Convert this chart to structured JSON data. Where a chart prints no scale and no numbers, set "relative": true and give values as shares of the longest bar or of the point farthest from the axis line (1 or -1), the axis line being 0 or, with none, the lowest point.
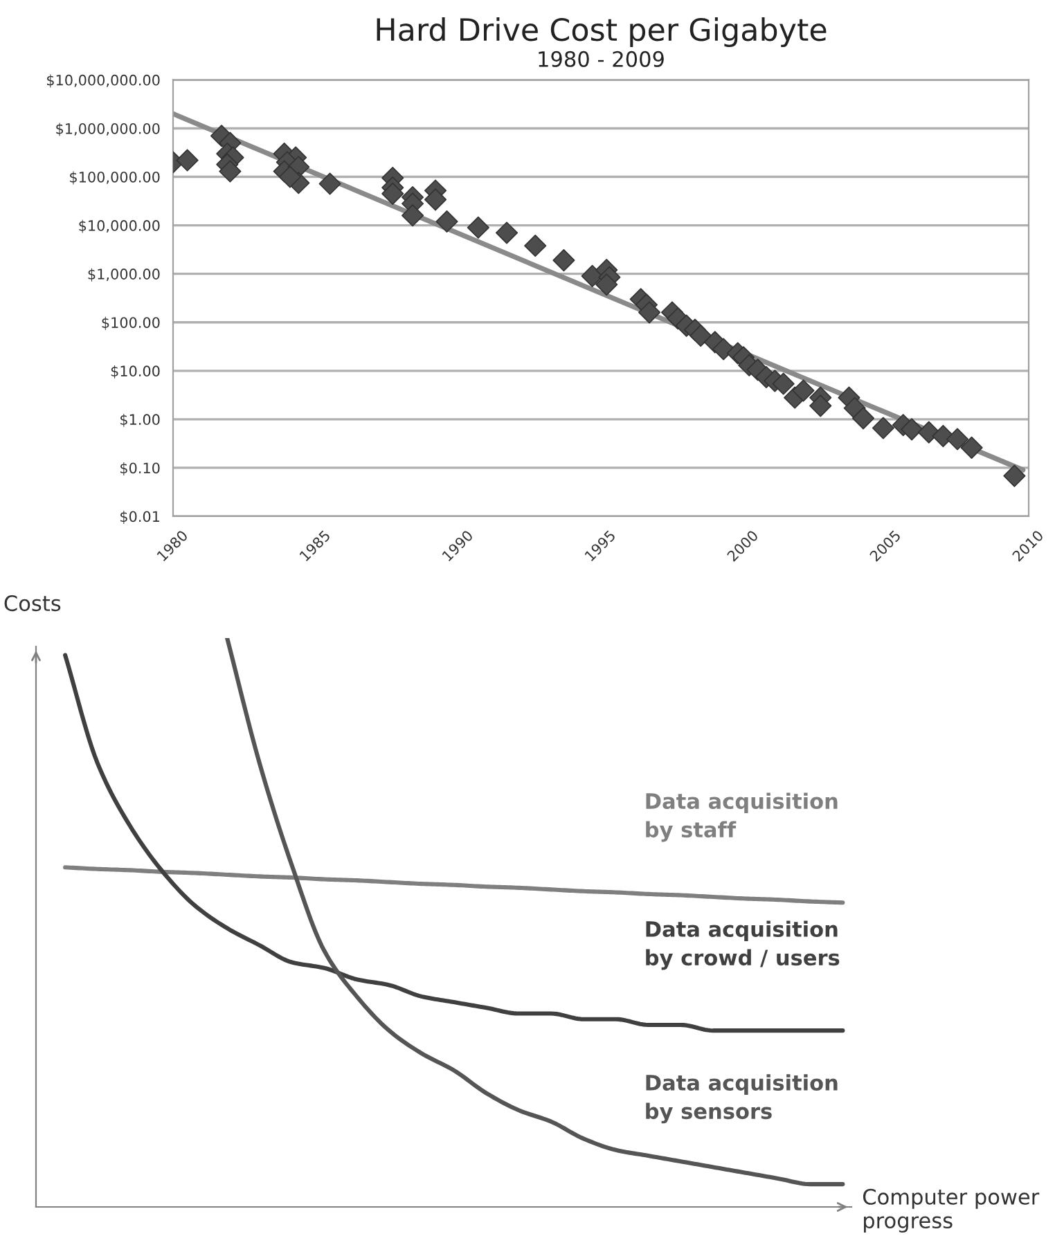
{
  "chart_data": [
    {
      "type": "scatter",
      "title": "Hard Drive Cost per Gigabyte",
      "subtitle": "1980 - 2009",
      "log": "y",
      "grid": "y",
      "marker": "diamond",
      "xlim": [
        1980,
        2010
      ],
      "xticks": [
        1980,
        1985,
        1990,
        1995,
        2000,
        2005,
        2010
      ],
      "ylim": [
        0.01,
        10000000
      ],
      "yticks": [
        {
          "value": 0.01,
          "label": "$0.01"
        },
        {
          "value": 0.1,
          "label": "$0.10"
        },
        {
          "value": 1,
          "label": "$1.00"
        },
        {
          "value": 10,
          "label": "$10.00"
        },
        {
          "value": 100,
          "label": "$100.00"
        },
        {
          "value": 1000,
          "label": "$1,000.00"
        },
        {
          "value": 10000,
          "label": "$10,000.00"
        },
        {
          "value": 100000,
          "label": "$100,000.00"
        },
        {
          "value": 1000000,
          "label": "$1,000,000.00"
        },
        {
          "value": 10000000,
          "label": "$10,000,000.00"
        }
      ],
      "series": [
        {
          "type": "line",
          "marker": "none",
          "color": "#8a8a8a",
          "x": [
            1980,
            2009.8
          ],
          "values": [
            2000000,
            0.09
          ]
        },
        {
          "type": "scatter",
          "color": "#4d4d4d",
          "x": [
            1980.0,
            1980.5,
            1981.7,
            1982.0,
            1981.9,
            1982.1,
            1981.9,
            1982.0,
            1983.9,
            1984.3,
            1984.0,
            1983.9,
            1984.4,
            1984.4,
            1984.1,
            1985.5,
            1987.7,
            1987.7,
            1987.7,
            1988.4,
            1988.4,
            1988.4,
            1989.2,
            1989.2,
            1989.6,
            1990.7,
            1991.7,
            1992.7,
            1993.7,
            1994.7,
            1995.2,
            1995.3,
            1995.2,
            1996.4,
            1996.6,
            1996.7,
            1997.5,
            1997.7,
            1998.0,
            1998.3,
            1998.5,
            1999.0,
            1999.3,
            1999.8,
            2000.0,
            2000.2,
            2000.5,
            2000.8,
            2001.1,
            2001.4,
            2001.8,
            2002.1,
            2002.7,
            2002.7,
            2003.7,
            2003.9,
            2004.2,
            2004.9,
            2005.6,
            2005.9,
            2006.5,
            2007.0,
            2007.5,
            2008.0,
            2009.5
          ],
          "values": [
            200000,
            220000,
            700000,
            500000,
            300000,
            250000,
            180000,
            130000,
            300000,
            250000,
            200000,
            130000,
            160000,
            75000,
            100000,
            72000,
            95000,
            60000,
            45000,
            38000,
            28000,
            16000,
            52000,
            34000,
            12000,
            9000,
            7000,
            3800,
            1900,
            900,
            1200,
            850,
            600,
            300,
            230,
            160,
            160,
            120,
            85,
            70,
            53,
            39,
            28,
            23,
            19,
            13,
            10.5,
            7.4,
            6.2,
            5.4,
            2.8,
            3.9,
            2.8,
            1.9,
            2.8,
            1.7,
            1.05,
            0.66,
            0.76,
            0.62,
            0.54,
            0.45,
            0.39,
            0.26,
            0.068
          ]
        }
      ]
    },
    {
      "type": "line",
      "relative": true,
      "ylabel": "Costs",
      "xlabel": "Computer power progress",
      "marker": "none",
      "line_style": "solid",
      "categories": [
        null,
        null,
        null,
        null,
        null,
        null,
        null,
        null,
        null,
        null,
        null,
        null,
        null,
        null,
        null,
        null,
        null,
        null,
        null,
        null,
        null,
        null,
        null,
        null,
        null
      ],
      "series": [
        {
          "name": "Data acquisition\nby staff",
          "color": "#7f7f7f",
          "values": [
            0.597,
            0.594,
            0.592,
            0.589,
            0.587,
            0.584,
            0.581,
            0.579,
            0.576,
            0.574,
            0.571,
            0.568,
            0.566,
            0.563,
            0.561,
            0.558,
            0.555,
            0.553,
            0.55,
            0.548,
            0.545,
            0.542,
            0.54,
            0.537,
            0.535
          ]
        },
        {
          "name": "Data acquisition\nby crowd / users",
          "color": "#404040",
          "values": [
            0.97,
            0.78,
            0.67,
            0.59,
            0.53,
            0.49,
            0.46,
            0.43,
            0.42,
            0.4,
            0.39,
            0.37,
            0.36,
            0.35,
            0.34,
            0.34,
            0.33,
            0.33,
            0.32,
            0.32,
            0.31,
            0.31,
            0.31,
            0.31,
            0.31
          ]
        },
        {
          "name": "Data acquisition\nby sensors",
          "color": "#555555",
          "values": [
            null,
            null,
            null,
            null,
            null,
            1.0,
            0.78,
            0.6,
            0.45,
            0.37,
            0.31,
            0.27,
            0.24,
            0.2,
            0.17,
            0.15,
            0.12,
            0.1,
            0.09,
            0.08,
            0.07,
            0.06,
            0.05,
            0.04,
            0.04
          ]
        }
      ]
    }
  ]
}
